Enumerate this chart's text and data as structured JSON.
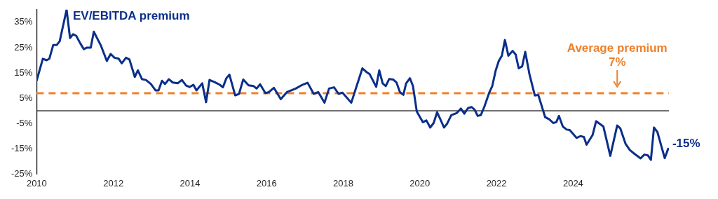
{
  "chart_data": {
    "type": "line",
    "x": [
      2010,
      2010.16,
      2010.26,
      2010.33,
      2010.43,
      2010.52,
      2010.6,
      2010.78,
      2010.87,
      2010.95,
      2011.03,
      2011.14,
      2011.23,
      2011.31,
      2011.41,
      2011.49,
      2011.67,
      2011.83,
      2011.93,
      2012.03,
      2012.14,
      2012.22,
      2012.33,
      2012.42,
      2012.56,
      2012.64,
      2012.75,
      2012.85,
      2012.98,
      2013.1,
      2013.18,
      2013.27,
      2013.35,
      2013.45,
      2013.55,
      2013.68,
      2013.79,
      2013.9,
      2013.99,
      2014.09,
      2014.17,
      2014.32,
      2014.42,
      2014.51,
      2014.65,
      2014.78,
      2014.86,
      2014.95,
      2015.03,
      2015.18,
      2015.28,
      2015.39,
      2015.53,
      2015.66,
      2015.74,
      2015.83,
      2015.97,
      2016.06,
      2016.19,
      2016.37,
      2016.53,
      2016.76,
      2016.91,
      2017.07,
      2017.23,
      2017.35,
      2017.51,
      2017.63,
      2017.76,
      2017.88,
      2017.98,
      2018.21,
      2018.35,
      2018.5,
      2018.61,
      2018.69,
      2018.86,
      2018.94,
      2019.03,
      2019.11,
      2019.2,
      2019.3,
      2019.39,
      2019.48,
      2019.57,
      2019.64,
      2019.74,
      2019.82,
      2019.92,
      2020.08,
      2020.17,
      2020.27,
      2020.36,
      2020.45,
      2020.53,
      2020.63,
      2020.71,
      2020.82,
      2020.96,
      2021.07,
      2021.16,
      2021.26,
      2021.35,
      2021.43,
      2021.51,
      2021.59,
      2021.68,
      2021.81,
      2021.89,
      2021.98,
      2022.06,
      2022.14,
      2022.22,
      2022.31,
      2022.42,
      2022.5,
      2022.58,
      2022.67,
      2022.75,
      2022.86,
      2023,
      2023.09,
      2023.27,
      2023.38,
      2023.48,
      2023.56,
      2023.63,
      2023.73,
      2023.83,
      2023.91,
      2024.09,
      2024.19,
      2024.28,
      2024.35,
      2024.51,
      2024.6,
      2024.79,
      2024.97,
      2025.15,
      2025.23,
      2025.37,
      2025.48,
      2025.6,
      2025.76,
      2025.86,
      2025.95,
      2026.03,
      2026.11,
      2026.2,
      2026.39,
      2026.48
    ],
    "series": [
      {
        "name": "EV/EBITDA premium",
        "color": "#0a2f8a",
        "values": [
          12,
          20.6,
          20,
          20.6,
          26,
          26,
          27.5,
          40,
          28.8,
          30.3,
          29.7,
          26.6,
          24.4,
          25,
          25,
          31.3,
          26,
          19.7,
          22.5,
          21,
          20.6,
          18.8,
          21,
          20.3,
          13.4,
          16,
          12.5,
          12.2,
          10.6,
          8.1,
          8.1,
          11.9,
          10.6,
          12.5,
          11.2,
          10.9,
          12.2,
          10,
          9.4,
          10.3,
          8.1,
          10.9,
          3.4,
          12.2,
          11.3,
          10.3,
          9.3,
          12.9,
          14.3,
          6.1,
          6.7,
          12.4,
          10.1,
          9.8,
          8.8,
          10.5,
          7,
          7.4,
          9.1,
          4.6,
          7.4,
          8.8,
          10.1,
          11.1,
          6.7,
          7.4,
          3.2,
          8.8,
          9.3,
          6.7,
          7.2,
          3.2,
          9.8,
          16.8,
          15.3,
          14.5,
          9.5,
          16,
          10.8,
          9.8,
          12.6,
          12.4,
          11.2,
          7.4,
          6.3,
          10.8,
          12.9,
          9.8,
          -0.3,
          -4.5,
          -3.8,
          -6.6,
          -4.8,
          -0.6,
          -3.2,
          -6.6,
          -5.1,
          -1.7,
          -0.9,
          0.9,
          -1.1,
          1.1,
          1.5,
          0.4,
          -2,
          -1.7,
          1.5,
          7.2,
          9.8,
          16,
          19.7,
          21.8,
          28,
          21.8,
          23.7,
          22.3,
          16.8,
          17.6,
          23.3,
          14.5,
          6.1,
          6.3,
          -2.5,
          -3.4,
          -4.8,
          -4.5,
          -2,
          -6.2,
          -7.4,
          -7.6,
          -10.7,
          -10,
          -10.3,
          -13.4,
          -9.5,
          -4.1,
          -6.2,
          -17.8,
          -5.8,
          -6.9,
          -13.1,
          -15.5,
          -17,
          -18.8,
          -17.3,
          -17.6,
          -19.4,
          -6.6,
          -8.4,
          -18.7,
          -15
        ]
      }
    ],
    "xlim": [
      2010,
      2026.5
    ],
    "xticks": [
      2010,
      2012,
      2014,
      2016,
      2018,
      2020,
      2022,
      2024
    ],
    "ylim": [
      -25,
      40
    ],
    "yticks": [
      {
        "value": -25,
        "label": "-25%"
      },
      {
        "value": -15,
        "label": "-15%"
      },
      {
        "value": -5,
        "label": "-5%"
      },
      {
        "value": 5,
        "label": "5%"
      },
      {
        "value": 15,
        "label": "15%"
      },
      {
        "value": 25,
        "label": "25%"
      },
      {
        "value": 35,
        "label": "35%"
      }
    ],
    "ref_lines": [
      {
        "axis": "y",
        "value": 7,
        "label": "Average premium",
        "color": "#f0802a",
        "line_style": "dashed"
      },
      {
        "axis": "y",
        "value": 0,
        "color": "#000000",
        "line_style": "solid"
      }
    ],
    "annotations": [
      {
        "text": "7%",
        "x": 2025.15,
        "y": 7
      },
      {
        "text": "-15%",
        "x": 2026.48,
        "y": -15
      }
    ],
    "marker": "none",
    "grid": false,
    "legend": false
  }
}
